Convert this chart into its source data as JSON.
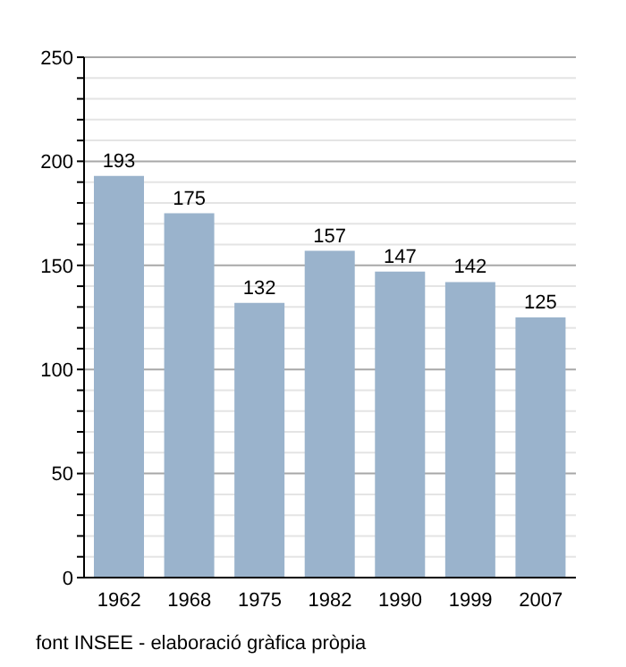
{
  "chart_data": {
    "type": "bar",
    "categories": [
      "1962",
      "1968",
      "1975",
      "1982",
      "1990",
      "1999",
      "2007"
    ],
    "values": [
      193,
      175,
      132,
      157,
      147,
      142,
      125
    ],
    "color": "#9ab3cc",
    "data_labels": true,
    "ylim": [
      0,
      250
    ],
    "yticks": [
      0,
      {
        "value": 10,
        "label": null
      },
      {
        "value": 20,
        "label": null
      },
      {
        "value": 30,
        "label": null
      },
      {
        "value": 40,
        "label": null
      },
      50,
      {
        "value": 60,
        "label": null
      },
      {
        "value": 70,
        "label": null
      },
      {
        "value": 80,
        "label": null
      },
      {
        "value": 90,
        "label": null
      },
      100,
      {
        "value": 110,
        "label": null
      },
      {
        "value": 120,
        "label": null
      },
      {
        "value": 130,
        "label": null
      },
      {
        "value": 140,
        "label": null
      },
      150,
      {
        "value": 160,
        "label": null
      },
      {
        "value": 170,
        "label": null
      },
      {
        "value": 180,
        "label": null
      },
      {
        "value": 190,
        "label": null
      },
      200,
      {
        "value": 210,
        "label": null
      },
      {
        "value": 220,
        "label": null
      },
      {
        "value": 230,
        "label": null
      },
      {
        "value": 240,
        "label": null
      },
      250
    ],
    "grid": "y",
    "annotations": [
      "font INSEE - elaboració gràfica pròpia"
    ]
  }
}
